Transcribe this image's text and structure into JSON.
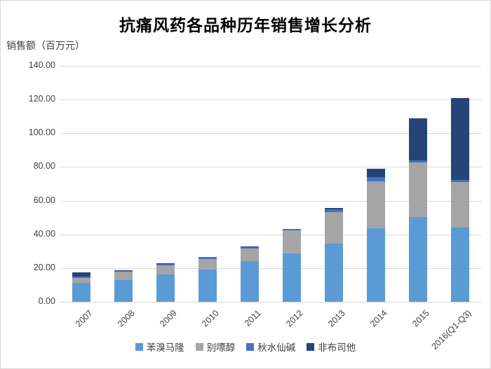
{
  "chart_data": {
    "type": "bar",
    "stacked": true,
    "title": "抗痛风药各品种历年销售增长分析",
    "ylabel": "销售额（百万元）",
    "xlabel": "",
    "ylim": [
      0,
      140
    ],
    "y_tick_labels": [
      "0.00",
      "20.00",
      "40.00",
      "60.00",
      "80.00",
      "100.00",
      "120.00",
      "140.00"
    ],
    "grid": true,
    "legend_position": "bottom",
    "categories": [
      "2007",
      "2008",
      "2009",
      "2010",
      "2011",
      "2012",
      "2013",
      "2014",
      "2015",
      "2016(Q1-Q3)"
    ],
    "series": [
      {
        "name": "苯溴马隆",
        "color": "#5B9BD5",
        "values": [
          11.4,
          13.0,
          16.0,
          19.3,
          24.0,
          28.8,
          34.3,
          43.6,
          50.1,
          44.2
        ]
      },
      {
        "name": "别嘌醇",
        "color": "#A5A5A5",
        "values": [
          2.6,
          5.0,
          5.8,
          6.0,
          7.7,
          13.5,
          18.8,
          28.0,
          32.4,
          26.9
        ]
      },
      {
        "name": "秋水仙碱",
        "color": "#4472C4",
        "values": [
          0.9,
          0.6,
          0.8,
          1.2,
          0.8,
          1.1,
          1.8,
          2.4,
          1.4,
          1.3
        ]
      },
      {
        "name": "非布司他",
        "color": "#264478",
        "values": [
          2.4,
          0.3,
          0.4,
          0.0,
          0.5,
          0.0,
          0.9,
          4.8,
          24.8,
          48.3
        ]
      }
    ],
    "colors": {
      "gridline": "#d9d9d9",
      "axis_text": "#404040",
      "title_text": "#000000"
    }
  }
}
